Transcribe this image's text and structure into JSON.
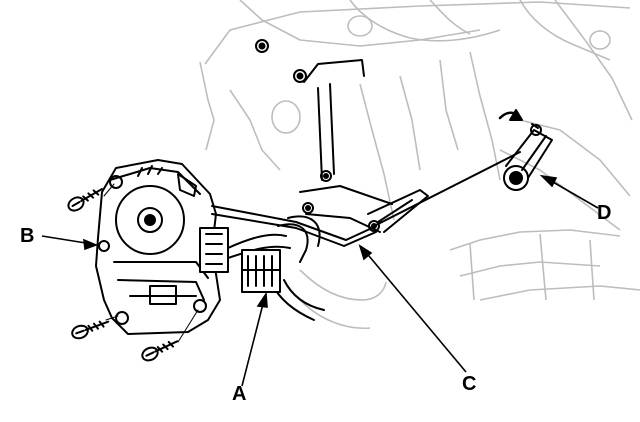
{
  "callouts": {
    "a": "A",
    "b": "B",
    "c": "C",
    "d": "D"
  },
  "colors": {
    "ink": "#000000",
    "paper": "#ffffff",
    "shade": "#bdbdbd"
  }
}
